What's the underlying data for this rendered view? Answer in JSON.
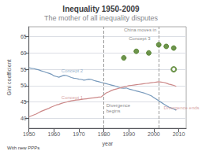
{
  "chart_data": {
    "type": "line",
    "title": "Inequality 1950-2009",
    "subtitle": "The mother of all inequality disputes",
    "footnote": "With new PPPs",
    "xlabel": "year",
    "ylabel": "Gini coefficient",
    "xlim": [
      1950,
      2013
    ],
    "ylim": [
      37,
      68
    ],
    "xticks": [
      1950,
      1960,
      1970,
      1980,
      1990,
      2000,
      2010
    ],
    "yticks": [
      40,
      45,
      50,
      55,
      60,
      65
    ],
    "grid": true,
    "vlines": [
      1980,
      2002
    ],
    "series": [
      {
        "type": "line",
        "color": "#7799bb",
        "x": [
          1950,
          1951,
          1952,
          1953,
          1954,
          1955,
          1956,
          1957,
          1958,
          1959,
          1960,
          1961,
          1962,
          1963,
          1964,
          1965,
          1966,
          1967,
          1968,
          1969,
          1970,
          1971,
          1972,
          1973,
          1974,
          1975,
          1976,
          1977,
          1978,
          1979,
          1980,
          1981,
          1982,
          1983,
          1984,
          1985,
          1986,
          1987,
          1988,
          1989,
          1990,
          1991,
          1992,
          1993,
          1994,
          1995,
          1996,
          1997,
          1998,
          1999,
          2000,
          2001,
          2002,
          2003,
          2004,
          2005,
          2006,
          2007,
          2008,
          2009
        ],
        "values": [
          55.5,
          55.3,
          55.2,
          55.0,
          54.8,
          54.5,
          54.3,
          54.0,
          53.8,
          53.5,
          53.0,
          52.8,
          52.6,
          52.9,
          53.2,
          53.1,
          52.8,
          52.5,
          52.3,
          52.2,
          52.0,
          51.9,
          51.7,
          51.8,
          52.0,
          51.9,
          51.6,
          51.4,
          51.2,
          51.0,
          50.8,
          50.6,
          50.4,
          50.2,
          50.0,
          49.8,
          49.5,
          49.3,
          49.2,
          49.3,
          49.0,
          48.8,
          48.6,
          48.4,
          48.2,
          48.0,
          47.8,
          47.5,
          47.2,
          46.9,
          46.4,
          45.9,
          45.4,
          44.9,
          44.4,
          43.9,
          43.5,
          43.2,
          42.9,
          42.5
        ]
      },
      {
        "type": "line",
        "color": "#cc8888",
        "x": [
          1950,
          1951,
          1952,
          1953,
          1954,
          1955,
          1956,
          1957,
          1958,
          1959,
          1960,
          1961,
          1962,
          1963,
          1964,
          1965,
          1966,
          1967,
          1968,
          1969,
          1970,
          1971,
          1972,
          1973,
          1974,
          1975,
          1976,
          1977,
          1978,
          1979,
          1980,
          1981,
          1982,
          1983,
          1984,
          1985,
          1986,
          1987,
          1988,
          1989,
          1990,
          1991,
          1992,
          1993,
          1994,
          1995,
          1996,
          1997,
          1998,
          1999,
          2000,
          2001,
          2002,
          2003,
          2004,
          2005,
          2006,
          2007,
          2008,
          2009
        ],
        "values": [
          40.5,
          40.8,
          41.1,
          41.4,
          41.8,
          42.2,
          42.5,
          42.8,
          43.1,
          43.5,
          43.8,
          44.1,
          44.3,
          44.6,
          44.8,
          45.0,
          45.2,
          45.4,
          45.5,
          45.6,
          45.7,
          45.8,
          45.9,
          46.0,
          46.1,
          46.2,
          46.3,
          46.4,
          46.5,
          46.6,
          47.2,
          47.8,
          48.1,
          48.5,
          48.8,
          49.0,
          49.2,
          49.4,
          49.6,
          49.8,
          50.0,
          50.1,
          50.2,
          50.3,
          50.4,
          50.5,
          50.6,
          50.7,
          50.8,
          50.9,
          51.0,
          51.1,
          51.2,
          51.1,
          51.0,
          50.8,
          50.5,
          50.3,
          50.1,
          49.8
        ]
      },
      {
        "type": "scatter",
        "color": "#4a7a20",
        "marker": "circle",
        "x": [
          1988,
          1993,
          1998,
          2002,
          2005,
          2008
        ],
        "values": [
          58.5,
          60.5,
          60.0,
          62.5,
          62.0,
          61.5
        ]
      },
      {
        "type": "scatter",
        "color": "#4a7a20",
        "marker": "open_circle",
        "x": [
          2008
        ],
        "values": [
          55.0
        ]
      }
    ],
    "annotations": [
      {
        "text": "China moves in",
        "x": 1988,
        "y": 66.2,
        "color": "#666666"
      },
      {
        "text": "Concept 3",
        "x": 1990,
        "y": 63.5,
        "color": "#666666"
      },
      {
        "text": "Concept 2",
        "x": 1963,
        "y": 53.8,
        "color": "#7799bb"
      },
      {
        "text": "Concept 1",
        "x": 1963,
        "y": 45.5,
        "color": "#cc8888"
      },
      {
        "text": "Divergence\nbegins",
        "x": 1981,
        "y": 41.5,
        "color": "#666666"
      },
      {
        "text": "Divergence ends",
        "x": 2004,
        "y": 42.5,
        "color": "#cc8888"
      }
    ]
  }
}
